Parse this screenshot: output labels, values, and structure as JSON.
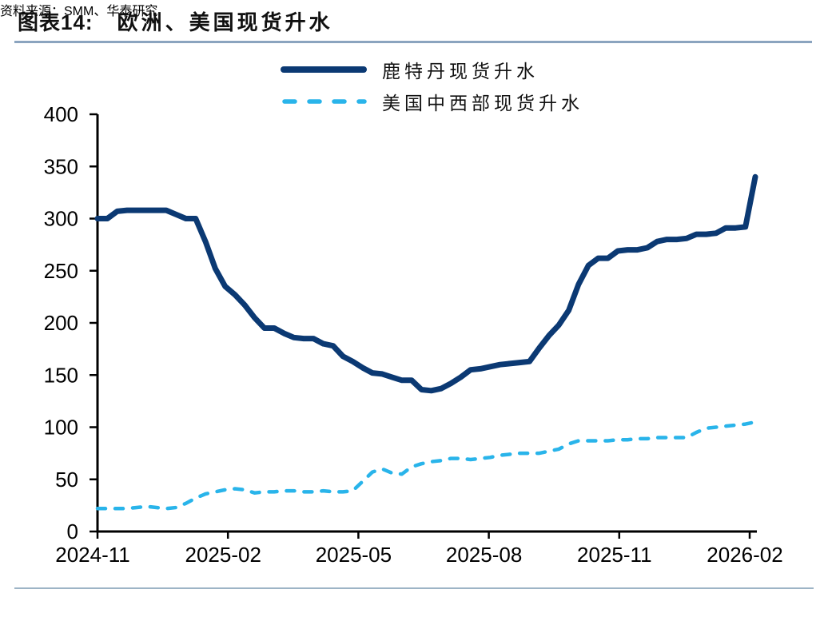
{
  "header": {
    "figure_label": "图表14:",
    "title": "欧洲、美国现货升水"
  },
  "footer": {
    "source": "资料来源：SMM、华泰研究"
  },
  "colors": {
    "navy": "#0b3973",
    "light_blue": "#29b4ea",
    "axis": "#000000",
    "title_rule": "#8ba4bf",
    "footer_rule": "#9db4c6",
    "source_text": "#8a8a8a"
  },
  "chart_data": {
    "type": "line",
    "title": "欧洲、美国现货升水",
    "xlabel": "",
    "ylabel": "",
    "x_note": "weekly observations from 2024-11 to 2026-02",
    "x_tick_labels": [
      "2024-11",
      "2025-02",
      "2025-05",
      "2025-08",
      "2025-11",
      "2026-02"
    ],
    "y_ticks": [
      0,
      50,
      100,
      150,
      200,
      250,
      300,
      350,
      400
    ],
    "ylim": [
      0,
      400
    ],
    "grid": false,
    "legend_position": "top-center",
    "series": [
      {
        "name": "鹿特丹现货升水",
        "line_style": "solid",
        "color": "#0b3973",
        "values": [
          300,
          300,
          307,
          308,
          308,
          308,
          308,
          308,
          304,
          300,
          300,
          278,
          252,
          235,
          227,
          217,
          205,
          195,
          195,
          190,
          186,
          185,
          185,
          180,
          178,
          168,
          163,
          157,
          152,
          151,
          148,
          145,
          145,
          136,
          135,
          137,
          142,
          148,
          155,
          156,
          158,
          160,
          161,
          162,
          163,
          176,
          188,
          198,
          212,
          237,
          255,
          262,
          262,
          269,
          270,
          270,
          272,
          278,
          280,
          280,
          281,
          285,
          285,
          286,
          291,
          291,
          292,
          340
        ]
      },
      {
        "name": "美国中西部现货升水",
        "line_style": "dashed",
        "color": "#29b4ea",
        "values": [
          22,
          22,
          22,
          22,
          23,
          24,
          23,
          22,
          23,
          27,
          32,
          36,
          38,
          40,
          41,
          40,
          37,
          38,
          38,
          39,
          39,
          38,
          38,
          39,
          38,
          38,
          39,
          48,
          57,
          60,
          56,
          55,
          62,
          65,
          67,
          68,
          70,
          70,
          69,
          70,
          71,
          73,
          74,
          75,
          75,
          75,
          77,
          79,
          84,
          87,
          87,
          87,
          87,
          88,
          88,
          89,
          89,
          90,
          90,
          90,
          90,
          95,
          99,
          100,
          101,
          102,
          103,
          105
        ]
      }
    ]
  }
}
